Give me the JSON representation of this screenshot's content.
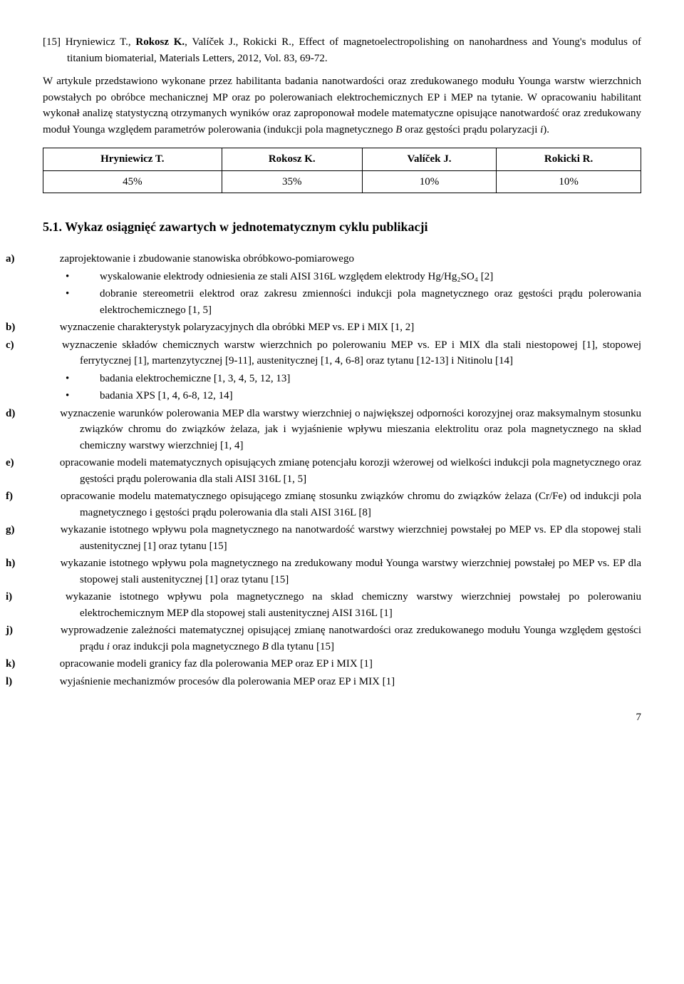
{
  "reference": {
    "num": "[15]",
    "authors_pre": "Hryniewicz T., ",
    "authors_bold": "Rokosz K.",
    "authors_post": ", Valíček J., Rokicki R., Effect of magnetoelectropolishing on nanohardness and Young's modulus of titanium biomaterial, Materials Letters, 2012, Vol. 83, 69-72."
  },
  "paragraph": "W artykule przedstawiono wykonane przez habilitanta badania nanotwardości oraz zredukowanego modułu Younga warstw wierzchnich powstałych po obróbce mechanicznej MP oraz po polerowaniach elektrochemicznych EP i MEP na tytanie. W opracowaniu habilitant wykonał analizę statystyczną otrzymanych wyników oraz zaproponował modele matematyczne opisujące nanotwardość oraz zredukowany moduł Younga względem parametrów polerowania (indukcji pola magnetycznego B oraz gęstości prądu polaryzacji i).",
  "table": {
    "headers": [
      "Hryniewicz T.",
      "Rokosz K.",
      "Valíček J.",
      "Rokicki R."
    ],
    "row": [
      "45%",
      "35%",
      "10%",
      "10%"
    ]
  },
  "section": {
    "num": "5.1.",
    "title": "Wykaz osiągnięć zawartych w jednotematycznym cyklu publikacji"
  },
  "items": [
    {
      "label": "a)",
      "text": "zaprojektowanie i zbudowanie stanowiska obróbkowo-pomiarowego",
      "bullets": [
        "wyskalowanie elektrody odniesienia ze stali AISI 316L względem elektrody Hg/Hg₂SO₄ [2]",
        "dobranie stereometrii elektrod oraz zakresu zmienności indukcji pola magnetycznego oraz gęstości prądu polerowania elektrochemicznego [1, 5]"
      ]
    },
    {
      "label": "b)",
      "text": "wyznaczenie charakterystyk polaryzacyjnych dla obróbki MEP vs. EP i MIX [1, 2]"
    },
    {
      "label": "c)",
      "text": "wyznaczenie składów chemicznych warstw wierzchnich po polerowaniu MEP vs. EP i MIX dla stali niestopowej [1], stopowej ferrytycznej [1], martenzytycznej [9-11], austenitycznej [1, 4, 6-8] oraz tytanu [12-13] i Nitinolu [14]",
      "bullets": [
        "badania elektrochemiczne [1, 3, 4, 5, 12, 13]",
        "badania XPS [1, 4, 6-8, 12, 14]"
      ]
    },
    {
      "label": "d)",
      "text": "wyznaczenie warunków polerowania MEP dla warstwy wierzchniej o największej odporności korozyjnej oraz maksymalnym stosunku związków chromu do związków żelaza, jak i wyjaśnienie wpływu mieszania elektrolitu oraz pola magnetycznego na skład chemiczny warstwy wierzchniej [1, 4]"
    },
    {
      "label": "e)",
      "text": "opracowanie modeli matematycznych opisujących zmianę potencjału korozji wżerowej od wielkości indukcji pola magnetycznego oraz gęstości prądu polerowania dla stali AISI 316L [1, 5]"
    },
    {
      "label": "f)",
      "text": "opracowanie modelu matematycznego opisującego zmianę stosunku związków chromu do związków żelaza (Cr/Fe) od indukcji pola magnetycznego i gęstości prądu polerowania dla stali AISI 316L [8]"
    },
    {
      "label": "g)",
      "text": "wykazanie istotnego wpływu pola magnetycznego na nanotwardość warstwy wierzchniej powstałej po MEP vs. EP dla stopowej stali austenitycznej [1] oraz tytanu [15]"
    },
    {
      "label": "h)",
      "text": "wykazanie istotnego wpływu pola magnetycznego na zredukowany moduł Younga warstwy wierzchniej powstałej po MEP vs. EP dla stopowej stali austenitycznej [1] oraz tytanu [15]"
    },
    {
      "label": "i)",
      "text": "wykazanie istotnego wpływu pola magnetycznego na skład chemiczny warstwy wierzchniej powstałej po polerowaniu elektrochemicznym MEP dla stopowej stali austenitycznej AISI 316L [1]"
    },
    {
      "label": "j)",
      "text": "wyprowadzenie zależności matematycznej opisującej zmianę nanotwardości oraz zredukowanego modułu Younga względem gęstości prądu i oraz indukcji pola magnetycznego B dla tytanu [15]"
    },
    {
      "label": "k)",
      "text": "opracowanie modeli granicy faz dla polerowania MEP oraz EP i MIX [1]"
    },
    {
      "label": "l)",
      "text": "wyjaśnienie mechanizmów procesów dla polerowania MEP oraz EP i MIX [1]"
    }
  ],
  "pagenum": "7"
}
